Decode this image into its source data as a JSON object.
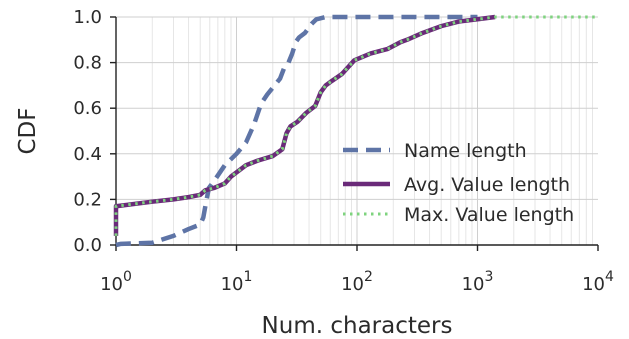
{
  "chart_data": {
    "type": "line",
    "xscale": "log",
    "xlabel": "Num. characters",
    "ylabel": "CDF",
    "xlim": [
      1,
      10000
    ],
    "ylim": [
      0,
      1
    ],
    "grid": true,
    "legend_position": "lower-right",
    "x_ticks": [
      {
        "value": 1,
        "base": "10",
        "exp": "0"
      },
      {
        "value": 10,
        "base": "10",
        "exp": "1"
      },
      {
        "value": 100,
        "base": "10",
        "exp": "2"
      },
      {
        "value": 1000,
        "base": "10",
        "exp": "3"
      },
      {
        "value": 10000,
        "base": "10",
        "exp": "4"
      }
    ],
    "y_ticks": [
      "0.0",
      "0.2",
      "0.4",
      "0.6",
      "0.8",
      "1.0"
    ],
    "series": [
      {
        "name": "Name length",
        "style": "dashed",
        "color": "#5e74a6",
        "points": [
          [
            1,
            0.0
          ],
          [
            1.1,
            0.005
          ],
          [
            2,
            0.01
          ],
          [
            3,
            0.04
          ],
          [
            4,
            0.07
          ],
          [
            5,
            0.09
          ],
          [
            5.3,
            0.12
          ],
          [
            5.6,
            0.19
          ],
          [
            5.9,
            0.25
          ],
          [
            6.5,
            0.28
          ],
          [
            8,
            0.35
          ],
          [
            10,
            0.4
          ],
          [
            12,
            0.45
          ],
          [
            14,
            0.53
          ],
          [
            16,
            0.62
          ],
          [
            18,
            0.66
          ],
          [
            20,
            0.69
          ],
          [
            23,
            0.73
          ],
          [
            25,
            0.78
          ],
          [
            27,
            0.8
          ],
          [
            29,
            0.84
          ],
          [
            31,
            0.89
          ],
          [
            33,
            0.91
          ],
          [
            37,
            0.93
          ],
          [
            42,
            0.97
          ],
          [
            46,
            0.99
          ],
          [
            55,
            1.0
          ],
          [
            1000,
            1.0
          ]
        ]
      },
      {
        "name": "Avg. Value length",
        "style": "solid",
        "color": "#6a2a79",
        "points": [
          [
            1,
            0.04
          ],
          [
            1,
            0.17
          ],
          [
            2,
            0.19
          ],
          [
            3,
            0.2
          ],
          [
            4,
            0.21
          ],
          [
            5,
            0.22
          ],
          [
            5.5,
            0.24
          ],
          [
            6.5,
            0.25
          ],
          [
            8,
            0.27
          ],
          [
            9,
            0.3
          ],
          [
            12,
            0.35
          ],
          [
            15,
            0.37
          ],
          [
            20,
            0.39
          ],
          [
            24,
            0.42
          ],
          [
            26,
            0.49
          ],
          [
            28,
            0.52
          ],
          [
            32,
            0.54
          ],
          [
            38,
            0.58
          ],
          [
            45,
            0.61
          ],
          [
            50,
            0.67
          ],
          [
            55,
            0.7
          ],
          [
            62,
            0.72
          ],
          [
            75,
            0.75
          ],
          [
            95,
            0.81
          ],
          [
            130,
            0.84
          ],
          [
            180,
            0.86
          ],
          [
            230,
            0.89
          ],
          [
            260,
            0.9
          ],
          [
            350,
            0.93
          ],
          [
            500,
            0.96
          ],
          [
            700,
            0.98
          ],
          [
            1000,
            0.99
          ],
          [
            1400,
            1.0
          ]
        ]
      },
      {
        "name": "Max. Value length",
        "style": "dotted",
        "color": "#7ed37e",
        "points": [
          [
            1,
            0.04
          ],
          [
            1,
            0.17
          ],
          [
            2,
            0.19
          ],
          [
            3,
            0.2
          ],
          [
            4,
            0.21
          ],
          [
            5,
            0.22
          ],
          [
            5.5,
            0.24
          ],
          [
            6.5,
            0.25
          ],
          [
            8,
            0.27
          ],
          [
            9,
            0.3
          ],
          [
            12,
            0.35
          ],
          [
            15,
            0.37
          ],
          [
            20,
            0.39
          ],
          [
            24,
            0.42
          ],
          [
            26,
            0.49
          ],
          [
            28,
            0.52
          ],
          [
            32,
            0.54
          ],
          [
            38,
            0.58
          ],
          [
            45,
            0.61
          ],
          [
            50,
            0.67
          ],
          [
            55,
            0.7
          ],
          [
            62,
            0.72
          ],
          [
            75,
            0.75
          ],
          [
            95,
            0.81
          ],
          [
            130,
            0.84
          ],
          [
            180,
            0.86
          ],
          [
            230,
            0.89
          ],
          [
            260,
            0.9
          ],
          [
            350,
            0.93
          ],
          [
            500,
            0.96
          ],
          [
            700,
            0.98
          ],
          [
            1000,
            0.99
          ],
          [
            1400,
            1.0
          ],
          [
            10000,
            1.0
          ]
        ]
      }
    ]
  }
}
